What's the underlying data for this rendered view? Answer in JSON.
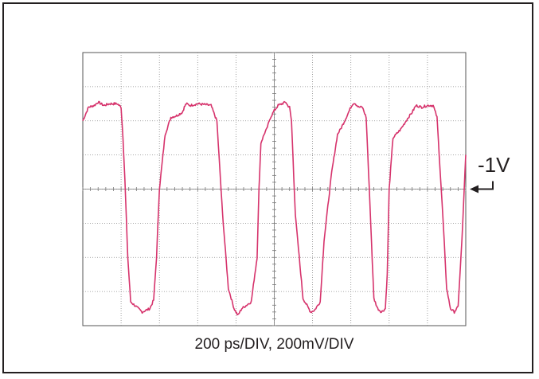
{
  "chart_data": {
    "type": "line",
    "title": "",
    "xlabel": "200 ps/DIV, 200mV/DIV",
    "ylabel": "",
    "x_unit": "ps",
    "y_unit": "mV",
    "x_per_div": 200,
    "y_per_div": 200,
    "xlim": [
      0,
      2000
    ],
    "ylim": [
      -800,
      800
    ],
    "grid": true,
    "grid_style": "dotted",
    "reference_marker": {
      "label": "-1V",
      "level": 0
    },
    "series": [
      {
        "color": "#d6336c",
        "x": [
          0,
          30,
          60,
          80,
          110,
          140,
          180,
          200,
          210,
          220,
          235,
          250,
          290,
          310,
          330,
          350,
          370,
          385,
          400,
          430,
          460,
          490,
          520,
          530,
          540,
          560,
          600,
          640,
          670,
          700,
          730,
          760,
          790,
          800,
          810,
          830,
          880,
          910,
          920,
          930,
          950,
          960,
          980,
          1000,
          1020,
          1040,
          1060,
          1070,
          1080,
          1090,
          1110,
          1150,
          1190,
          1210,
          1240,
          1260,
          1300,
          1330,
          1350,
          1380,
          1400,
          1410,
          1420,
          1440,
          1460,
          1480,
          1500,
          1520,
          1540,
          1560,
          1580,
          1590,
          1600,
          1620,
          1660,
          1700,
          1720,
          1740,
          1770,
          1800,
          1830,
          1850,
          1880,
          1900,
          1920,
          1940,
          1960,
          1980,
          2000
        ],
        "values": [
          400,
          480,
          490,
          510,
          490,
          500,
          500,
          480,
          300,
          50,
          -400,
          -660,
          -700,
          -720,
          -710,
          -700,
          -650,
          -400,
          0,
          320,
          420,
          430,
          450,
          480,
          500,
          490,
          500,
          495,
          490,
          400,
          -150,
          -580,
          -700,
          -720,
          -740,
          -700,
          -660,
          -400,
          0,
          270,
          330,
          350,
          420,
          460,
          490,
          500,
          510,
          490,
          480,
          400,
          -150,
          -640,
          -720,
          -710,
          -660,
          -300,
          100,
          320,
          360,
          430,
          480,
          500,
          505,
          480,
          480,
          420,
          -100,
          -640,
          -700,
          -720,
          -700,
          -500,
          0,
          300,
          350,
          420,
          450,
          490,
          480,
          490,
          490,
          420,
          -150,
          -580,
          -700,
          -720,
          -690,
          -300,
          200
        ]
      }
    ]
  }
}
